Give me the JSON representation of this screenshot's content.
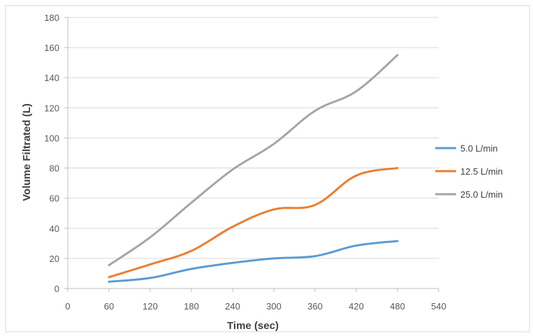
{
  "chart_data": {
    "type": "line",
    "title": "",
    "xlabel": "Time (sec)",
    "ylabel": "Volume Filtrated (L)",
    "xlim": [
      0,
      540
    ],
    "ylim": [
      0,
      180
    ],
    "x_ticks": [
      0,
      60,
      120,
      180,
      240,
      300,
      360,
      420,
      480,
      540
    ],
    "y_ticks": [
      0,
      20,
      40,
      60,
      80,
      100,
      120,
      140,
      160,
      180
    ],
    "grid": "horizontal",
    "legend_position": "right",
    "x": [
      60,
      120,
      180,
      240,
      300,
      360,
      420,
      480
    ],
    "series": [
      {
        "name": "5.0 L/min",
        "color": "#5b9bd5",
        "values": [
          4.5,
          7,
          13,
          17,
          20,
          21.5,
          28.5,
          31.5
        ]
      },
      {
        "name": "12.5 L/min",
        "color": "#ed7d31",
        "values": [
          7.5,
          16,
          25,
          41,
          52.5,
          55.5,
          75,
          80
        ]
      },
      {
        "name": "25.0 L/min",
        "color": "#a5a5a5",
        "values": [
          15.5,
          34,
          57,
          79,
          96,
          118,
          131,
          155
        ]
      }
    ]
  }
}
